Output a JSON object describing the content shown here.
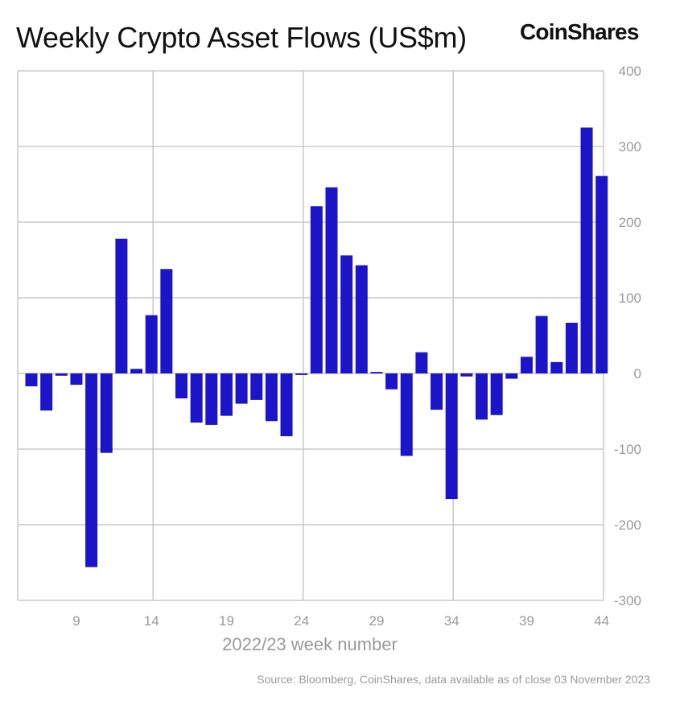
{
  "header": {
    "title": "Weekly Crypto Asset Flows (US$m)",
    "brand": "CoinShares"
  },
  "footer": {
    "source": "Source: Bloomberg, CoinShares, data available as of close 03 November 2023"
  },
  "colors": {
    "bar": "#1b14c9",
    "grid": "#c8c8c8",
    "text_muted": "#9a9a9a"
  },
  "chart_data": {
    "type": "bar",
    "title": "Weekly Crypto Asset Flows (US$m)",
    "xlabel": "2022/23 week number",
    "ylabel": "",
    "ylim": [
      -300,
      400
    ],
    "yticks": [
      400,
      300,
      200,
      100,
      0,
      -100,
      -200,
      -300
    ],
    "xticks": [
      9,
      14,
      19,
      24,
      29,
      34,
      39,
      44
    ],
    "y_axis_side": "right",
    "grid": true,
    "categories": [
      6,
      7,
      8,
      9,
      10,
      11,
      12,
      13,
      14,
      15,
      16,
      17,
      18,
      19,
      20,
      21,
      22,
      23,
      24,
      25,
      26,
      27,
      28,
      29,
      30,
      31,
      32,
      33,
      34,
      35,
      36,
      37,
      38,
      39,
      40,
      41,
      42,
      43,
      44
    ],
    "values": [
      -17,
      -49,
      -3,
      -15,
      -256,
      -105,
      178,
      6,
      77,
      138,
      -33,
      -65,
      -68,
      -56,
      -40,
      -35,
      -63,
      -83,
      -2,
      221,
      246,
      156,
      143,
      2,
      -21,
      -109,
      28,
      -48,
      -166,
      -4,
      -61,
      -55,
      -7,
      22,
      76,
      15,
      67,
      325,
      261
    ]
  }
}
